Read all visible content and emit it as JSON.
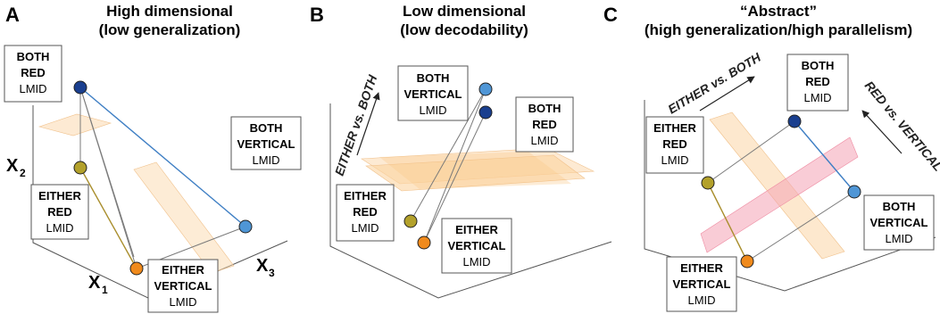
{
  "colors": {
    "navy": "#1a3f8f",
    "light_blue": "#4f96d6",
    "olive": "#b3a12b",
    "orange": "#f08a1c",
    "blue_line": "#3f7fc4",
    "olive_line": "#a98e2d",
    "plane_peach": "#fbd9ae",
    "plane_pink": "#f4a3b4"
  },
  "panels": {
    "a": {
      "letter": "A",
      "title_line1": "High dimensional",
      "title_line2": "(low generalization)",
      "axis_x1": "X",
      "axis_x1_sub": "1",
      "axis_x2": "X",
      "axis_x2_sub": "2",
      "axis_x3": "X",
      "axis_x3_sub": "3",
      "labels": {
        "both_red": [
          "BOTH",
          "RED",
          "LMID"
        ],
        "both_vertical": [
          "BOTH",
          "VERTICAL",
          "LMID"
        ],
        "either_red": [
          "EITHER",
          "RED",
          "LMID"
        ],
        "either_vertical": [
          "EITHER",
          "VERTICAL",
          "LMID"
        ]
      }
    },
    "b": {
      "letter": "B",
      "title_line1": "Low dimensional",
      "title_line2": "(low decodability)",
      "direction_label": "EITHER vs. BOTH",
      "labels": {
        "both_vertical": [
          "BOTH",
          "VERTICAL",
          "LMID"
        ],
        "both_red": [
          "BOTH",
          "RED",
          "LMID"
        ],
        "either_red": [
          "EITHER",
          "RED",
          "LMID"
        ],
        "either_vertical": [
          "EITHER",
          "VERTICAL",
          "LMID"
        ]
      }
    },
    "c": {
      "letter": "C",
      "title_line1": "“Abstract”",
      "title_line2": "(high generalization/high parallelism)",
      "direction_label_1": "EITHER vs. BOTH",
      "direction_label_2": "RED vs. VERTICAL",
      "labels": {
        "both_red": [
          "BOTH",
          "RED",
          "LMID"
        ],
        "either_red": [
          "EITHER",
          "RED",
          "LMID"
        ],
        "both_vertical": [
          "BOTH",
          "VERTICAL",
          "LMID"
        ],
        "either_vertical": [
          "EITHER",
          "VERTICAL",
          "LMID"
        ]
      }
    }
  }
}
